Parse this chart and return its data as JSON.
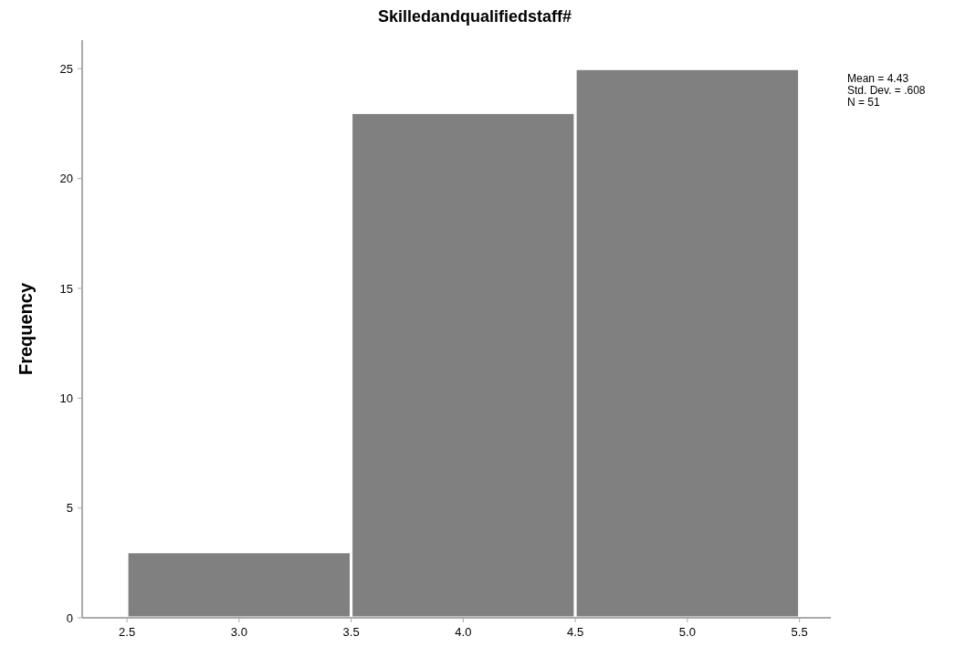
{
  "chart_data": {
    "type": "histogram",
    "title": "Skilledandqualifiedstaff#",
    "ylabel": "Frequency",
    "bins": [
      2.5,
      3.5,
      4.5,
      5.5
    ],
    "values": [
      3,
      23,
      25
    ],
    "color": "#808080",
    "xlim": [
      2.3,
      5.64
    ],
    "xticks": [
      {
        "value": 2.5,
        "label": "2.5"
      },
      {
        "value": 3,
        "label": "3.0"
      },
      {
        "value": 3.5,
        "label": "3.5"
      },
      {
        "value": 4,
        "label": "4.0"
      },
      {
        "value": 4.5,
        "label": "4.5"
      },
      {
        "value": 5,
        "label": "5.0"
      },
      {
        "value": 5.5,
        "label": "5.5"
      }
    ],
    "ylim": [
      0,
      26.3
    ],
    "yticks": [
      0,
      5,
      10,
      15,
      20,
      25
    ],
    "grid": false,
    "annotations": [
      "Mean = 4.43",
      "Std. Dev. = .608",
      "N = 51"
    ]
  }
}
